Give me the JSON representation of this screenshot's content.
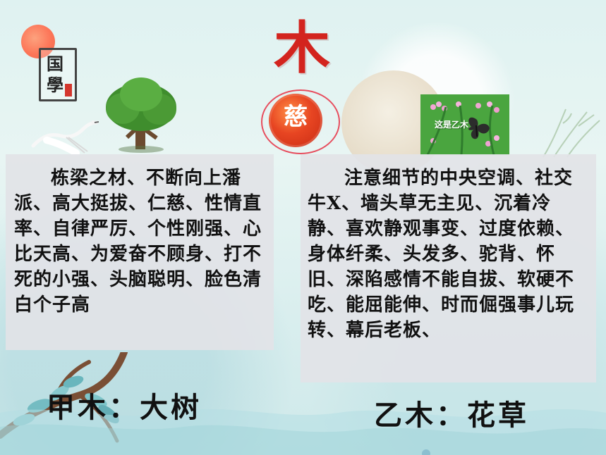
{
  "seal": {
    "line1": "国",
    "line2": "學"
  },
  "hero": {
    "main_char": "木",
    "circle_char": "慈",
    "photo_label": "这是乙木"
  },
  "left_panel": {
    "text": "栋梁之材、不断向上潘派、高大挺拔、仁慈、性情直率、自律严厉、个性刚强、心比天高、为爱奋不顾身、打不死的小强、头脑聪明、脸色清白个子高"
  },
  "right_panel": {
    "text": "注意细节的中央空调、社交牛X、墙头草无主见、沉着冷静、喜欢静观事变、过度依赖、身体纤柔、头发多、驼背、怀旧、深陷感情不能自拔、软硬不吃、能屈能伸、时而倔强事儿玩转、幕后老板、"
  },
  "captions": {
    "left": "甲木：大树",
    "right": "乙木：花草"
  },
  "colors": {
    "accent_red": "#d3241e",
    "panel_bg": "#e2e3e7",
    "background": "#e8f5f3"
  },
  "icons": {
    "sun": "sun-icon",
    "seal": "seal-icon",
    "crane": "crane-icon",
    "tree": "tree-icon",
    "moon": "moon-icon",
    "grass": "grass-icon",
    "branch": "branch-icon",
    "butterfly": "butterfly-icon"
  }
}
